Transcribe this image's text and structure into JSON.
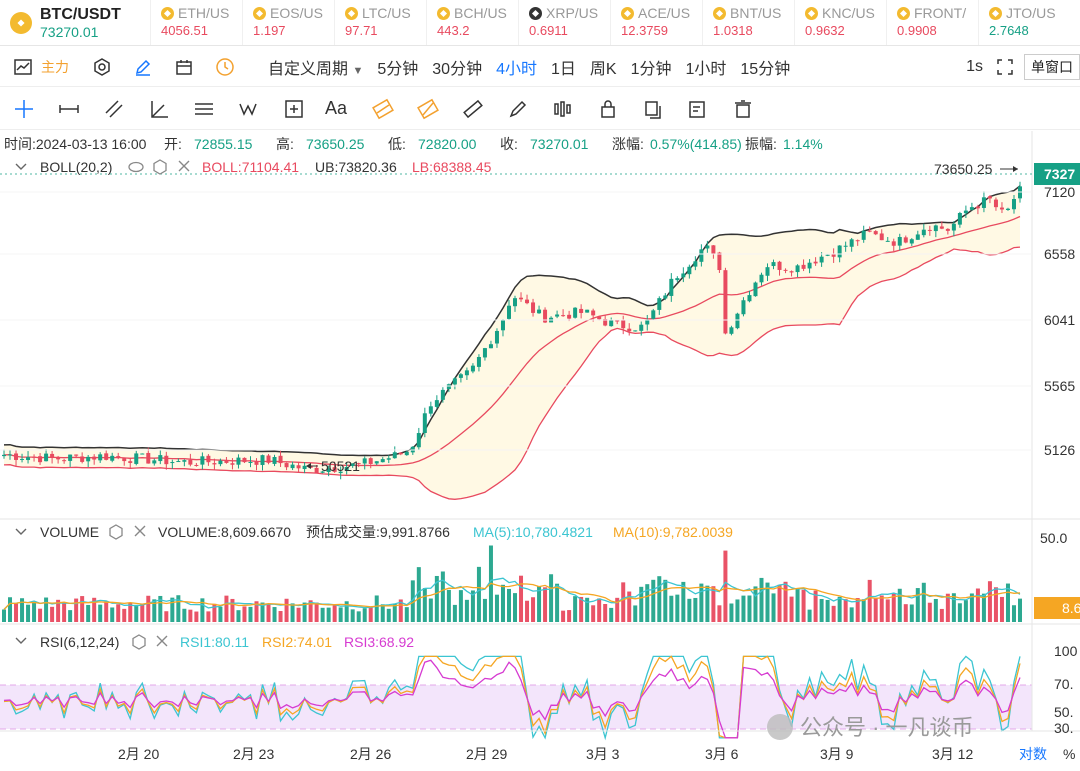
{
  "pair": {
    "name": "BTC/USDT",
    "price": "73270.01"
  },
  "tickers": [
    {
      "sym": "ETH/US",
      "val": "4056.51",
      "dir": "down",
      "xrp": false
    },
    {
      "sym": "EOS/US",
      "val": "1.197",
      "dir": "down",
      "xrp": false
    },
    {
      "sym": "LTC/US",
      "val": "97.71",
      "dir": "down",
      "xrp": false
    },
    {
      "sym": "BCH/US",
      "val": "443.2",
      "dir": "down",
      "xrp": false
    },
    {
      "sym": "XRP/US",
      "val": "0.6911",
      "dir": "down",
      "xrp": true
    },
    {
      "sym": "ACE/US",
      "val": "12.3759",
      "dir": "down",
      "xrp": false
    },
    {
      "sym": "BNT/US",
      "val": "1.0318",
      "dir": "down",
      "xrp": false
    },
    {
      "sym": "KNC/US",
      "val": "0.9632",
      "dir": "down",
      "xrp": false
    },
    {
      "sym": "FRONT/",
      "val": "0.9908",
      "dir": "down",
      "xrp": false
    },
    {
      "sym": "JTO/US",
      "val": "2.7648",
      "dir": "up",
      "xrp": false
    }
  ],
  "toolbar": {
    "indicator_label": "主力",
    "custom_period": "自定义周期",
    "periods": [
      "5分钟",
      "30分钟",
      "4小时",
      "1日",
      "周K",
      "1分钟",
      "1小时",
      "15分钟"
    ],
    "active_period": "4小时",
    "interval": "1s",
    "window_label": "单窗口"
  },
  "draw_tools": [
    "crosshair-icon",
    "line-segment-icon",
    "parallel-channel-icon",
    "angle-icon",
    "horizontal-lines-icon",
    "wave-icon",
    "measure-box-icon",
    "text-tool-label",
    "fib-icon",
    "gann-icon",
    "ruler-icon",
    "brush-icon",
    "pattern-icon",
    "lock-icon",
    "copy-icon",
    "edit-icon",
    "trash-icon"
  ],
  "text_tool_label": "Aa",
  "ohlc": {
    "time_label": "时间:",
    "time": "2024-03-13 16:00",
    "open_label": "开:",
    "open": "72855.15",
    "high_label": "高:",
    "high": "73650.25",
    "low_label": "低:",
    "low": "72820.00",
    "close_label": "收:",
    "close": "73270.01",
    "change_label": "涨幅:",
    "change": "0.57%(414.85)",
    "amp_label": "振幅:",
    "amp": "1.14%"
  },
  "boll": {
    "name": "BOLL(20,2)",
    "mid": "BOLL:71104.41",
    "ub": "UB:73820.36",
    "lb": "LB:68388.45"
  },
  "volume": {
    "name": "VOLUME",
    "vol": "VOLUME:8,609.6670",
    "est": "预估成交量:9,991.8766",
    "ma5": "MA(5):10,780.4821",
    "ma10": "MA(10):9,782.0039",
    "axis_top": "50.0",
    "current_tag": "8.6"
  },
  "rsi": {
    "name": "RSI(6,12,24)",
    "rsi1": "RSI1:80.11",
    "rsi2": "RSI2:74.01",
    "rsi3": "RSI3:68.92",
    "ticks": [
      "100",
      "70.",
      "50.",
      "30."
    ]
  },
  "price_axis": {
    "current": "7327",
    "ticks": [
      "7120",
      "6558",
      "6041",
      "5565",
      "5126"
    ]
  },
  "annotations": {
    "high": "73650.25",
    "low": "50521"
  },
  "x_axis": {
    "labels": [
      "2月 20",
      "2月 23",
      "2月 26",
      "2月 29",
      "3月 3",
      "3月 6",
      "3月 9",
      "3月 12"
    ],
    "log_label": "对数",
    "pct_label": "%"
  },
  "watermark": "公众号 · 一凡谈币",
  "colors": {
    "up": "#16a085",
    "down": "#e84a5f",
    "boll_upper": "#333333",
    "boll_mid": "#e84a5f",
    "boll_lower": "#e84a5f",
    "ma5": "#3cc5d1",
    "ma10": "#f5a623",
    "rsi1": "#3cc5d1",
    "rsi2": "#f5a623",
    "rsi3": "#d63bd1",
    "active": "#1677ff"
  }
}
